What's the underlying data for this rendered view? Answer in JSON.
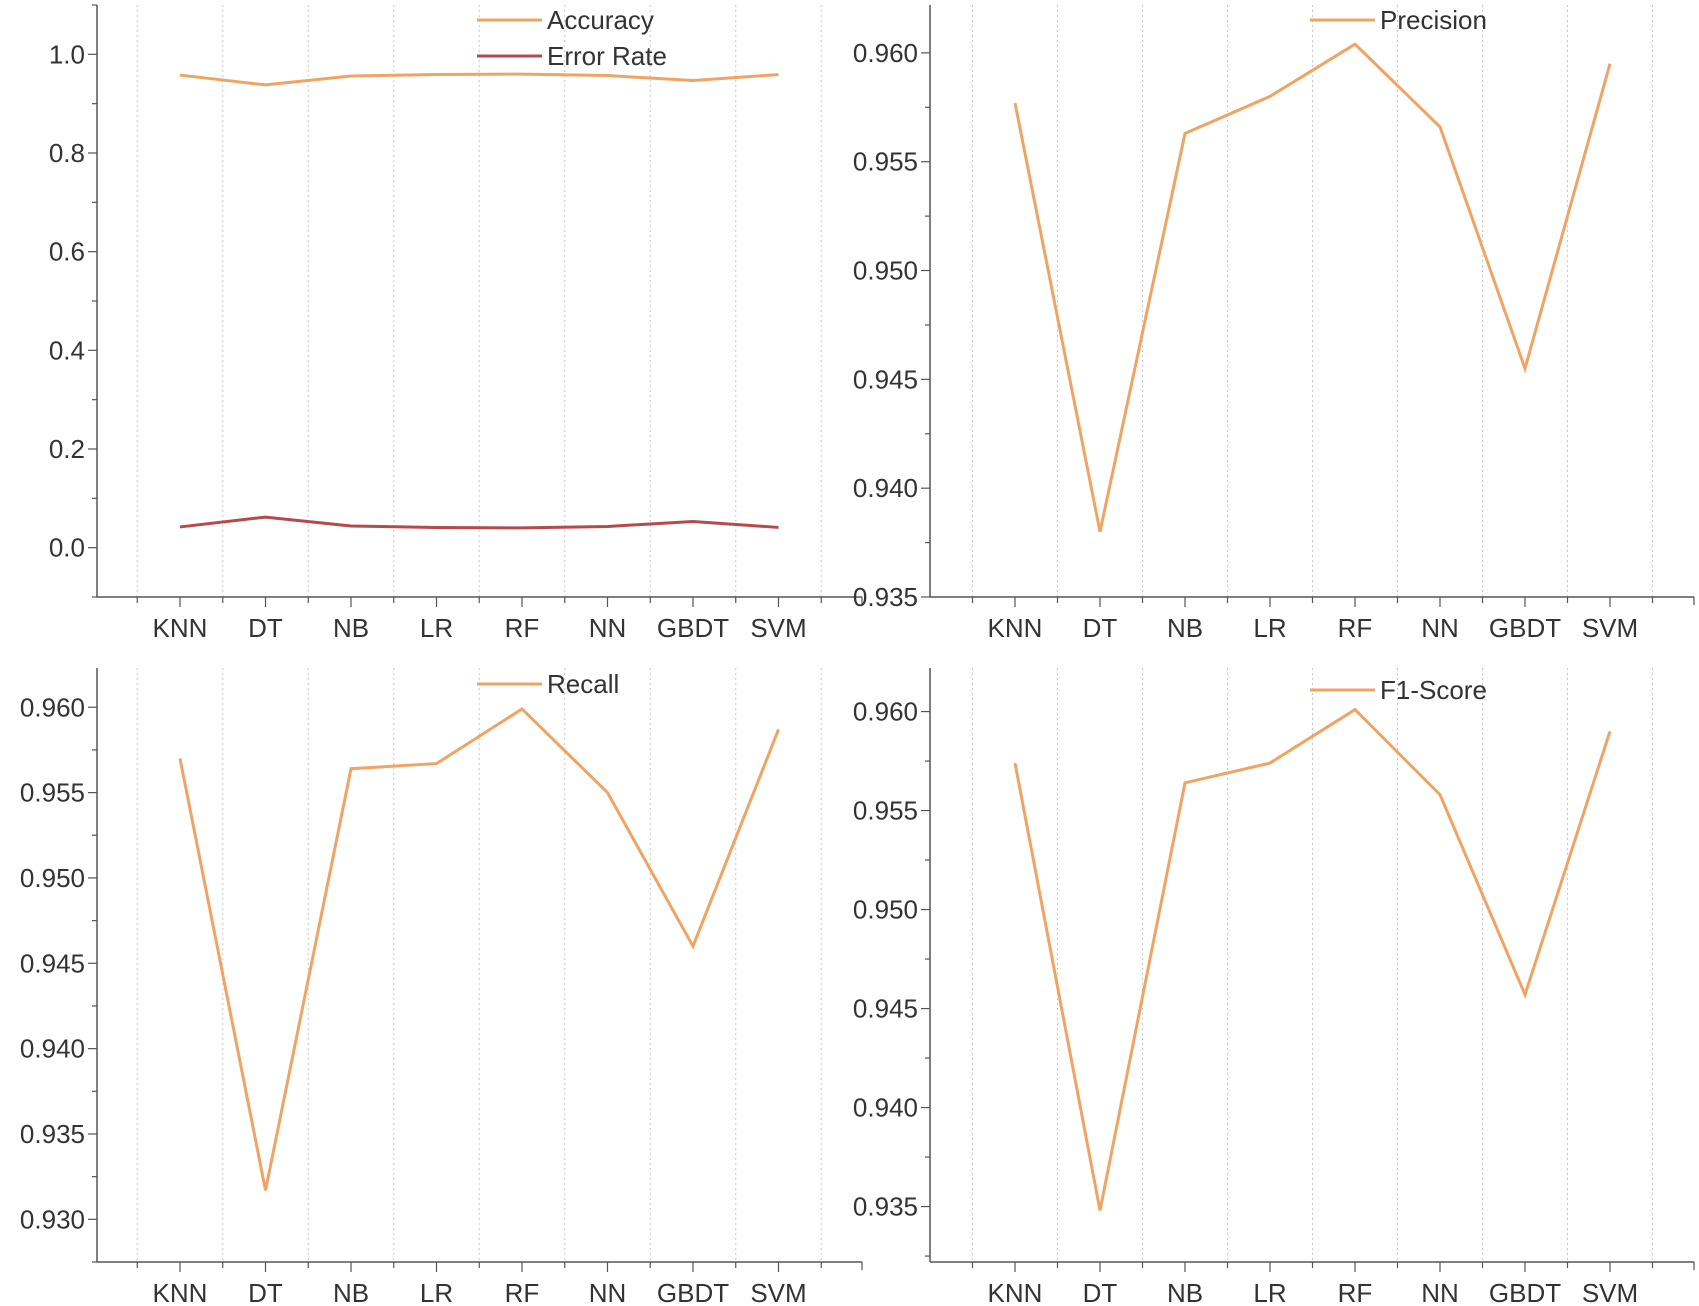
{
  "chart_data": [
    {
      "type": "line",
      "categories": [
        "KNN",
        "DT",
        "NB",
        "LR",
        "RF",
        "NN",
        "GBDT",
        "SVM"
      ],
      "series": [
        {
          "name": "Accuracy",
          "color": "#F0A464",
          "values": [
            0.958,
            0.938,
            0.956,
            0.959,
            0.96,
            0.957,
            0.947,
            0.959
          ]
        },
        {
          "name": "Error Rate",
          "color": "#B5494C",
          "values": [
            0.042,
            0.062,
            0.044,
            0.041,
            0.04,
            0.043,
            0.053,
            0.041
          ]
        }
      ],
      "ylim": [
        -0.1,
        1.1
      ],
      "yticks": [
        0.0,
        0.2,
        0.4,
        0.6,
        0.8,
        1.0
      ],
      "ytick_labels": [
        "0.0",
        "0.2",
        "0.4",
        "0.6",
        "0.8",
        "1.0"
      ],
      "ydecimals": 1,
      "grid": "vertical dotted",
      "legend": "top-center"
    },
    {
      "type": "line",
      "categories": [
        "KNN",
        "DT",
        "NB",
        "LR",
        "RF",
        "NN",
        "GBDT",
        "SVM"
      ],
      "series": [
        {
          "name": "Precision",
          "color": "#F0A464",
          "values": [
            0.9577,
            0.938,
            0.9563,
            0.958,
            0.9604,
            0.9566,
            0.9455,
            0.9595
          ]
        }
      ],
      "ylim": [
        0.935,
        0.9622
      ],
      "yticks": [
        0.935,
        0.94,
        0.945,
        0.95,
        0.955,
        0.96
      ],
      "ytick_labels": [
        "0.935",
        "0.940",
        "0.945",
        "0.950",
        "0.955",
        "0.960"
      ],
      "ydecimals": 3,
      "grid": "vertical dotted",
      "legend": "top-center"
    },
    {
      "type": "line",
      "categories": [
        "KNN",
        "DT",
        "NB",
        "LR",
        "RF",
        "NN",
        "GBDT",
        "SVM"
      ],
      "series": [
        {
          "name": "Recall",
          "color": "#F0A464",
          "values": [
            0.957,
            0.9317,
            0.9564,
            0.9567,
            0.9599,
            0.955,
            0.946,
            0.9587
          ]
        }
      ],
      "ylim": [
        0.9275,
        0.9623
      ],
      "yticks": [
        0.93,
        0.935,
        0.94,
        0.945,
        0.95,
        0.955,
        0.96
      ],
      "ytick_labels": [
        "0.930",
        "0.935",
        "0.940",
        "0.945",
        "0.950",
        "0.955",
        "0.960"
      ],
      "ydecimals": 3,
      "grid": "vertical dotted",
      "legend": "top-center"
    },
    {
      "type": "line",
      "categories": [
        "KNN",
        "DT",
        "NB",
        "LR",
        "RF",
        "NN",
        "GBDT",
        "SVM"
      ],
      "series": [
        {
          "name": "F1-Score",
          "color": "#F0A464",
          "values": [
            0.9574,
            0.9348,
            0.9564,
            0.9574,
            0.9601,
            0.9558,
            0.9457,
            0.959
          ]
        }
      ],
      "ylim": [
        0.9322,
        0.9622
      ],
      "yticks": [
        0.935,
        0.94,
        0.945,
        0.95,
        0.955,
        0.96
      ],
      "ytick_labels": [
        "0.935",
        "0.940",
        "0.945",
        "0.950",
        "0.955",
        "0.960"
      ],
      "ydecimals": 3,
      "grid": "vertical dotted",
      "legend": "top-center"
    }
  ]
}
